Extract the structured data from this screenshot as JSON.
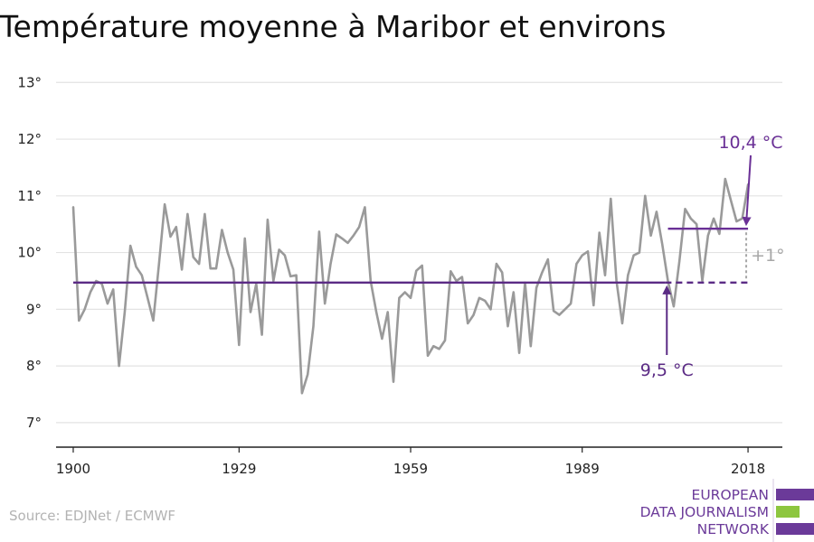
{
  "chart_data": {
    "type": "line",
    "title": "Température moyenne à Maribor et environs",
    "xlabel": "",
    "ylabel": "",
    "x_ticks": [
      "1900",
      "1929",
      "1959",
      "1989",
      "2018"
    ],
    "y_ticks": [
      "7°",
      "8°",
      "9°",
      "10°",
      "11°",
      "12°",
      "13°"
    ],
    "xlim": [
      1897,
      2024
    ],
    "ylim": [
      6.6,
      13.1
    ],
    "grid": true,
    "line_color": "#9a9a9a",
    "series": [
      {
        "years": [
          1900,
          1901,
          1902,
          1903,
          1904,
          1905,
          1906,
          1907,
          1908,
          1909,
          1910,
          1911,
          1912,
          1913,
          1914,
          1915,
          1916,
          1917,
          1918,
          1919,
          1920,
          1921,
          1922,
          1923,
          1924,
          1925,
          1926,
          1927,
          1928,
          1929,
          1930,
          1931,
          1932,
          1933,
          1934,
          1935,
          1936,
          1937,
          1938,
          1939,
          1940,
          1941,
          1942,
          1943,
          1944,
          1945,
          1946,
          1947,
          1948,
          1949,
          1950,
          1951,
          1952,
          1953,
          1954,
          1955,
          1956,
          1957,
          1958,
          1959,
          1960,
          1961,
          1962,
          1963,
          1964,
          1965,
          1966,
          1967,
          1968,
          1969,
          1970,
          1971,
          1972,
          1973,
          1974,
          1975,
          1976,
          1977,
          1978,
          1979,
          1980,
          1981,
          1982,
          1983,
          1984,
          1985,
          1986,
          1987,
          1988,
          1989,
          1990,
          1991,
          1992,
          1993,
          1994,
          1995,
          1996,
          1997,
          1998,
          1999,
          2000,
          2001,
          2002,
          2003,
          2004,
          2005,
          2006,
          2007,
          2008,
          2009,
          2010,
          2011,
          2012,
          2013,
          2014,
          2015,
          2016,
          2017,
          2018
        ],
        "values": [
          10.8,
          8.8,
          9.0,
          9.3,
          9.5,
          9.45,
          9.1,
          9.35,
          8.0,
          8.95,
          10.12,
          9.75,
          9.6,
          9.2,
          8.8,
          9.8,
          10.85,
          10.28,
          10.45,
          9.7,
          10.68,
          9.92,
          9.8,
          10.68,
          9.72,
          9.72,
          10.4,
          10.0,
          9.7,
          8.37,
          10.25,
          8.95,
          9.45,
          8.55,
          10.58,
          9.5,
          10.05,
          9.95,
          9.58,
          9.6,
          7.52,
          7.85,
          8.7,
          10.37,
          9.1,
          9.8,
          10.32,
          10.25,
          10.17,
          10.3,
          10.45,
          10.8,
          9.5,
          8.95,
          8.48,
          8.95,
          7.72,
          9.2,
          9.3,
          9.2,
          9.68,
          9.77,
          8.18,
          8.35,
          8.3,
          8.45,
          9.67,
          9.5,
          9.57,
          8.75,
          8.9,
          9.2,
          9.15,
          9.0,
          9.8,
          9.65,
          8.7,
          9.3,
          8.23,
          9.47,
          8.35,
          9.38,
          9.65,
          9.88,
          8.97,
          8.9,
          9.0,
          9.1,
          9.8,
          9.95,
          10.02,
          9.07,
          10.35,
          9.6,
          10.95,
          9.5,
          8.75,
          9.6,
          9.95,
          10.0,
          11.0,
          10.3,
          10.72,
          10.15,
          9.5,
          9.05,
          9.85,
          10.77,
          10.6,
          10.5,
          9.5,
          10.3,
          10.6,
          10.33,
          11.3,
          10.92,
          10.55,
          10.6,
          11.2
        ]
      }
    ],
    "annotations": {
      "baseline_value": 9.47,
      "baseline_label": "9,5 °C",
      "recent_value": 10.42,
      "recent_label": "10,4 °C",
      "diff_label": "+1°",
      "baseline_start_year": 1900,
      "baseline_end_year": 2004,
      "recent_start_year": 2004,
      "recent_end_year": 2018,
      "baseline_color": "#5b2b85",
      "recent_color": "#6a3096",
      "diff_color": "#a7a7a7"
    }
  },
  "footer": {
    "source": "Source: EDJNet / ECMWF",
    "logo_lines": [
      "EUROPEAN",
      "DATA JOURNALISM",
      "NETWORK"
    ],
    "logo_text_color": "#6b3a99",
    "logo_bar_colors": [
      "#6b3a99",
      "#8dc63f",
      "#6b3a99"
    ]
  }
}
